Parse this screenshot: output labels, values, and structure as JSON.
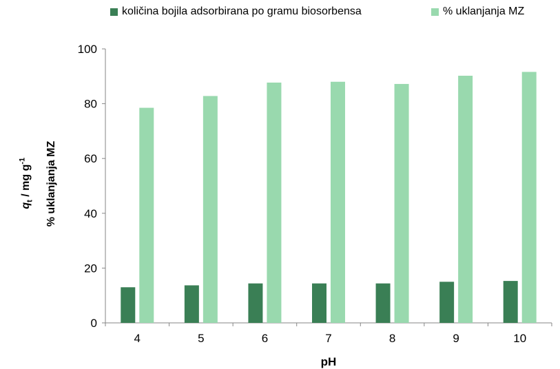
{
  "chart_data": {
    "type": "bar",
    "xlabel": "pH",
    "ylabel_primary_var": "q",
    "ylabel_primary_sub": "t",
    "ylabel_primary_rest": " / mg g",
    "ylabel_primary_sup": "-1",
    "ylabel_secondary": "% uklanjanja MZ",
    "ylim": [
      0,
      100
    ],
    "yticks": [
      0,
      20,
      40,
      60,
      80,
      100
    ],
    "categories": [
      "4",
      "5",
      "6",
      "7",
      "8",
      "9",
      "10"
    ],
    "series": [
      {
        "name": "količina bojila adsorbirana po gramu biosorbensa",
        "color": "#3a7f55",
        "values": [
          13.0,
          13.7,
          14.4,
          14.4,
          14.4,
          15.0,
          15.3
        ]
      },
      {
        "name": "% uklanjanja MZ",
        "color": "#99d9ae",
        "values": [
          78.5,
          82.8,
          87.7,
          88.0,
          87.2,
          90.2,
          91.6
        ]
      }
    ],
    "grid": false,
    "legend_position": "top"
  }
}
